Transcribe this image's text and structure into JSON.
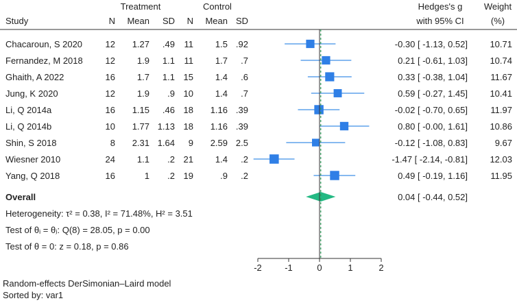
{
  "chart_data": {
    "type": "forest",
    "headers": {
      "study": "Study",
      "treatment_group": "Treatment",
      "control_group": "Control",
      "n": "N",
      "mean": "Mean",
      "sd": "SD",
      "effect_line1": "Hedges's g",
      "effect_line2": "with 95% CI",
      "weight_line1": "Weight",
      "weight_line2": "(%)"
    },
    "studies": [
      {
        "name": "Chacaroun, S 2020",
        "t_n": "12",
        "t_mean": "1.27",
        "t_sd": ".49",
        "c_n": "11",
        "c_mean": "1.5",
        "c_sd": ".92",
        "g": -0.3,
        "lo": -1.13,
        "hi": 0.52,
        "ci_text": "-0.30 [ -1.13,  0.52]",
        "weight": "10.71"
      },
      {
        "name": "Fernandez, M 2018",
        "t_n": "12",
        "t_mean": "1.9",
        "t_sd": "1.1",
        "c_n": "11",
        "c_mean": "1.7",
        "c_sd": ".7",
        "g": 0.21,
        "lo": -0.61,
        "hi": 1.03,
        "ci_text": "0.21 [ -0.61,  1.03]",
        "weight": "10.74"
      },
      {
        "name": "Ghaith, A 2022",
        "t_n": "16",
        "t_mean": "1.7",
        "t_sd": "1.1",
        "c_n": "15",
        "c_mean": "1.4",
        "c_sd": ".6",
        "g": 0.33,
        "lo": -0.38,
        "hi": 1.04,
        "ci_text": "0.33 [ -0.38,  1.04]",
        "weight": "11.67"
      },
      {
        "name": "Jung, K 2020",
        "t_n": "12",
        "t_mean": "1.9",
        "t_sd": ".9",
        "c_n": "10",
        "c_mean": "1.4",
        "c_sd": ".7",
        "g": 0.59,
        "lo": -0.27,
        "hi": 1.45,
        "ci_text": "0.59 [ -0.27,  1.45]",
        "weight": "10.41"
      },
      {
        "name": "Li, Q 2014a",
        "t_n": "16",
        "t_mean": "1.15",
        "t_sd": ".46",
        "c_n": "18",
        "c_mean": "1.16",
        "c_sd": ".39",
        "g": -0.02,
        "lo": -0.7,
        "hi": 0.65,
        "ci_text": "-0.02 [ -0.70,  0.65]",
        "weight": "11.97"
      },
      {
        "name": "Li, Q 2014b",
        "t_n": "10",
        "t_mean": "1.77",
        "t_sd": "1.13",
        "c_n": "18",
        "c_mean": "1.16",
        "c_sd": ".39",
        "g": 0.8,
        "lo": -0.0,
        "hi": 1.61,
        "ci_text": "0.80 [ -0.00,  1.61]",
        "weight": "10.86"
      },
      {
        "name": "Shin, S 2018",
        "t_n": "8",
        "t_mean": "2.31",
        "t_sd": "1.64",
        "c_n": "9",
        "c_mean": "2.59",
        "c_sd": "2.5",
        "g": -0.12,
        "lo": -1.08,
        "hi": 0.83,
        "ci_text": "-0.12 [ -1.08,  0.83]",
        "weight": "9.67"
      },
      {
        "name": "Wiesner 2010",
        "t_n": "24",
        "t_mean": "1.1",
        "t_sd": ".2",
        "c_n": "21",
        "c_mean": "1.4",
        "c_sd": ".2",
        "g": -1.47,
        "lo": -2.14,
        "hi": -0.81,
        "ci_text": "-1.47 [ -2.14, -0.81]",
        "weight": "12.03"
      },
      {
        "name": "Yang, Q 2018",
        "t_n": "16",
        "t_mean": "1",
        "t_sd": ".2",
        "c_n": "19",
        "c_mean": ".9",
        "c_sd": ".2",
        "g": 0.49,
        "lo": -0.19,
        "hi": 1.16,
        "ci_text": "0.49 [ -0.19,  1.16]",
        "weight": "11.95"
      }
    ],
    "overall": {
      "label": "Overall",
      "g": 0.04,
      "lo": -0.44,
      "hi": 0.52,
      "ci_text": "0.04 [ -0.44,  0.52]"
    },
    "heterogeneity_text": "Heterogeneity: τ² = 0.38, I² = 71.48%, H² = 3.51",
    "test_theta_i_text": "Test of θᵢ = θⱼ: Q(8) = 28.05, p = 0.00",
    "test_theta_0_text": "Test of θ = 0: z = 0.18, p = 0.86",
    "x_ticks": [
      -2,
      -1,
      0,
      1,
      2
    ],
    "xlim": [
      -2,
      2
    ],
    "footer_model": "Random-effects DerSimonian–Laird model",
    "footer_sort": "Sorted by: var1",
    "colors": {
      "marker": "#2f7fe6",
      "ci": "#3d8fe8",
      "diamond": "#23b983",
      "ref_line": "#2e9c5a",
      "axis": "#333333"
    }
  }
}
